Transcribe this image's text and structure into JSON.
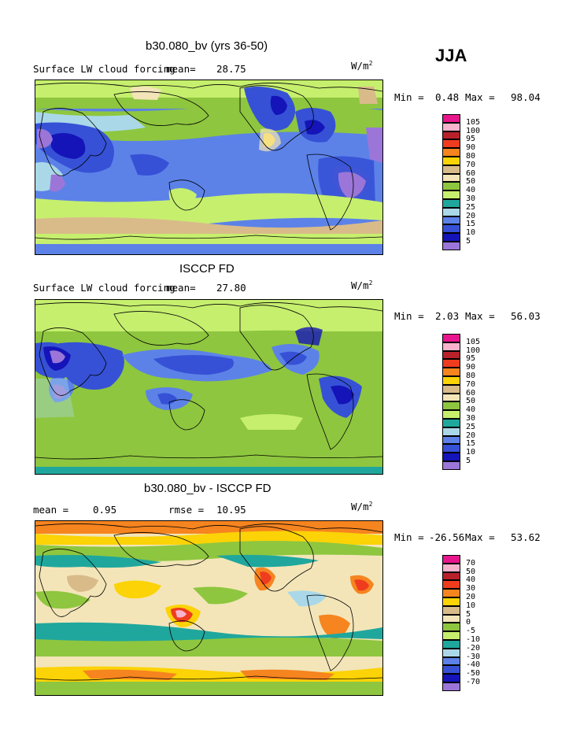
{
  "season": "JJA",
  "units_base": "W/m",
  "units_sup": "2",
  "panels": [
    {
      "title": "b30.080_bv (yrs 36-50)",
      "subtitle": "Surface LW cloud forcing",
      "mean_label": "mean=",
      "mean_value": "28.75",
      "min_label": "Min =",
      "min_value": "0.48",
      "max_label": "Max =",
      "max_value": "98.04",
      "levels": [
        "105",
        "100",
        "95",
        "90",
        "80",
        "70",
        "60",
        "50",
        "40",
        "30",
        "25",
        "20",
        "15",
        "10",
        "5"
      ]
    },
    {
      "title": "ISCCP FD",
      "subtitle": "Surface LW cloud forcing",
      "mean_label": "mean=",
      "mean_value": "27.80",
      "min_label": "Min =",
      "min_value": "2.03",
      "max_label": "Max =",
      "max_value": "56.03",
      "levels": [
        "105",
        "100",
        "95",
        "90",
        "80",
        "70",
        "60",
        "50",
        "40",
        "30",
        "25",
        "20",
        "15",
        "10",
        "5"
      ]
    },
    {
      "title": "b30.080_bv - ISCCP FD",
      "mean_label": "mean =",
      "mean_value": "0.95",
      "rmse_label": "rmse =",
      "rmse_value": "10.95",
      "min_label": "Min =",
      "min_value": "-26.56",
      "max_label": "Max =",
      "max_value": "53.62",
      "levels": [
        "70",
        "50",
        "40",
        "30",
        "20",
        "10",
        "5",
        "0",
        "-5",
        "-10",
        "-20",
        "-30",
        "-40",
        "-50",
        "-70"
      ]
    }
  ],
  "colors": [
    "#e8168c",
    "#f7b3cc",
    "#b8212a",
    "#ef3c1e",
    "#f6841f",
    "#fbd306",
    "#d9bb8a",
    "#f3e5b8",
    "#8ec63f",
    "#c6ef6e",
    "#1fa79d",
    "#aad8e8",
    "#5c82e8",
    "#3651d6",
    "#1414b8",
    "#9b76d8"
  ]
}
